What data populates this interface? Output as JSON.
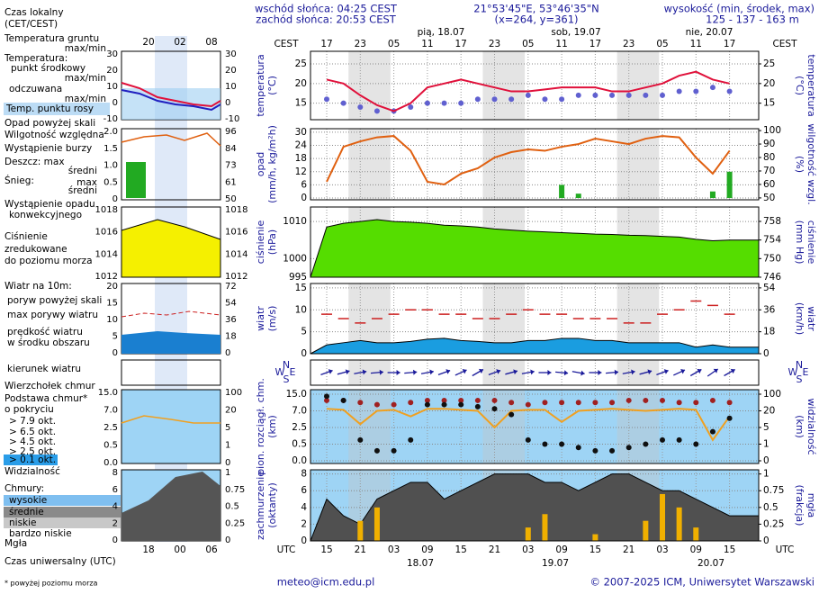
{
  "header": {
    "sunrise": "wschód słońca: 04:25 CEST",
    "sunset": "zachód słońca: 20:53 CEST",
    "coords": "21°53'45\"E, 53°46'35\"N",
    "grid": "(x=264,  y=361)",
    "elev_title": "wysokość (min, środek, max)",
    "elev": "125 - 137 - 163 m"
  },
  "time": {
    "cest_title": "CEST",
    "utc_title": "UTC",
    "cest": [
      "17",
      null,
      "23",
      null,
      "05",
      null,
      "11",
      null,
      "17",
      null,
      "23",
      null,
      "05",
      null,
      "11",
      null,
      "17",
      null,
      "23",
      null,
      "05",
      null,
      "11",
      null,
      "17"
    ],
    "utc": [
      "15",
      null,
      "21",
      null,
      "03",
      null,
      "09",
      null,
      "15",
      null,
      "21",
      null,
      "03",
      null,
      "09",
      null,
      "15",
      null,
      "21",
      null,
      "03",
      null,
      "09",
      null,
      "15"
    ],
    "days_top": [
      "pią, 18.07",
      "sob, 19.07",
      "nie, 20.07"
    ],
    "days_bottom": [
      "18.07",
      "19.07",
      "20.07"
    ]
  },
  "panels": [
    {
      "ylabel": [
        "temperatura",
        "(°C)"
      ],
      "y2label": [
        "(°C)",
        "temperatura"
      ],
      "ylim": [
        10.8,
        28.2
      ],
      "yticks": [
        25,
        20,
        15
      ],
      "y2lim": [
        10.8,
        28.2
      ],
      "y2ticks": [
        25,
        20,
        15
      ],
      "series": [
        {
          "kind": "dots",
          "color": "#6060d0",
          "values": [
            16,
            15,
            14,
            13,
            13,
            14,
            15,
            15,
            15,
            16,
            16,
            16,
            17,
            16,
            16,
            17,
            17,
            17,
            17,
            17,
            17,
            18,
            18,
            19,
            18
          ]
        },
        {
          "kind": "line",
          "color": "#e0103a",
          "values": [
            21,
            20,
            17,
            14.5,
            13,
            15,
            19,
            20,
            21,
            20,
            19,
            18,
            18,
            18.5,
            19,
            19,
            19,
            18,
            18,
            19,
            20,
            22,
            23,
            21,
            20
          ]
        }
      ]
    },
    {
      "ylabel": [
        "opad",
        "(mm/h, kg/m²h)"
      ],
      "y2label": [
        "(%)",
        "wilgotność wzgl."
      ],
      "ylim": [
        -0.8,
        31.6
      ],
      "yticks": [
        30,
        24,
        18,
        12,
        6,
        0
      ],
      "y2lim": [
        48.6,
        101.4
      ],
      "y2ticks": [
        100,
        90,
        80,
        70,
        60,
        50
      ],
      "series": [
        {
          "kind": "bars",
          "color": "#22aa22",
          "values": [
            0,
            0,
            0,
            0,
            0,
            0,
            0,
            0,
            0,
            0,
            0,
            0,
            0,
            0,
            6,
            2,
            0,
            0,
            0,
            0,
            0,
            0,
            0,
            3,
            12
          ]
        },
        {
          "kind": "line",
          "color": "#e06010",
          "axis": "y2",
          "values": [
            62,
            88,
            92,
            95,
            96,
            85,
            62,
            60,
            68,
            72,
            80,
            84,
            86,
            85,
            88,
            90,
            94,
            92,
            90,
            94,
            96,
            95,
            80,
            68,
            85
          ]
        }
      ]
    },
    {
      "ylabel": [
        "ciśnienie",
        "(hPa)"
      ],
      "y2label": [
        "(mm Hg)",
        "ciśnienie"
      ],
      "ylim": [
        995,
        1013.9
      ],
      "yticks": [
        1010,
        1000,
        995
      ],
      "y2lim": [
        746,
        761.1
      ],
      "y2ticks": [
        758,
        754,
        750,
        746
      ],
      "series": [
        {
          "kind": "area",
          "color": "#55dd00",
          "values": [
            1008.5,
            1009.5,
            1010,
            1010.5,
            1010,
            1009.8,
            1009.5,
            1009,
            1008.8,
            1008.5,
            1008,
            1007.7,
            1007.4,
            1007.2,
            1007,
            1006.8,
            1006.6,
            1006.5,
            1006.3,
            1006.2,
            1006,
            1005.8,
            1005.2,
            1004.8,
            1005
          ]
        }
      ]
    },
    {
      "ylabel": [
        "wiatr",
        "(m/s)"
      ],
      "y2label": [
        "(km/h)",
        "wiatr"
      ],
      "ylim": [
        0,
        16
      ],
      "yticks": [
        15,
        10,
        5,
        0
      ],
      "y2lim": [
        0,
        57.6
      ],
      "y2ticks": [
        54,
        36,
        18,
        0
      ],
      "series": [
        {
          "kind": "area",
          "color": "#1a9de0",
          "values": [
            2,
            2.5,
            3,
            2.5,
            2.5,
            2.8,
            3.3,
            3.5,
            3,
            2.8,
            2.5,
            2.5,
            3,
            3,
            3.5,
            3.5,
            3,
            3,
            2.5,
            2.5,
            2.5,
            2.5,
            1.5,
            2,
            1.5
          ]
        },
        {
          "kind": "dash",
          "color": "#cc2020",
          "values": [
            9,
            8,
            7,
            8,
            9,
            10,
            10,
            9,
            9,
            8,
            8,
            9,
            10,
            9,
            9,
            8,
            8,
            8,
            7,
            7,
            9,
            10,
            12,
            11,
            9
          ]
        }
      ]
    },
    {
      "compass": [
        "N",
        "W",
        "E",
        "S"
      ],
      "series": [
        {
          "kind": "arrows",
          "color": "#1a1a9a",
          "values": [
            250,
            255,
            260,
            265,
            270,
            265,
            260,
            250,
            245,
            240,
            250,
            255,
            260,
            270,
            275,
            280,
            270,
            265,
            260,
            255,
            250,
            245,
            240,
            235,
            240
          ]
        }
      ]
    },
    {
      "ylabel": [
        "pion. rozciągł. chm.",
        "(km)"
      ],
      "y2label": [
        "(km)",
        "widzialność"
      ],
      "scale": "ticks",
      "background": "#9ed4f5",
      "yticks": [
        {
          "value": 15,
          "label": "15.0"
        },
        {
          "value": 7,
          "label": "7.0"
        },
        2.5,
        0.5,
        {
          "value": 0,
          "label": "0.0"
        }
      ],
      "y2ticks": [
        100,
        20,
        5,
        1,
        0
      ],
      "series": [
        {
          "kind": "line",
          "color": "#f0a020",
          "axis": "y2",
          "values": [
            30,
            25,
            8,
            20,
            25,
            15,
            30,
            30,
            25,
            20,
            5,
            20,
            25,
            25,
            10,
            20,
            25,
            30,
            25,
            20,
            25,
            30,
            25,
            2,
            15
          ]
        },
        {
          "kind": "dots",
          "color": "#a02020",
          "values": [
            12,
            12,
            11,
            10,
            10,
            11,
            12,
            12,
            12,
            12,
            12,
            11,
            10,
            11,
            11,
            11,
            11,
            11,
            12,
            12,
            12,
            11,
            11,
            12,
            11
          ]
        },
        {
          "kind": "dots",
          "color": "#101010",
          "values": [
            14,
            12,
            1,
            0.3,
            0.3,
            1,
            10,
            10,
            10,
            9,
            8,
            6,
            1,
            0.5,
            0.5,
            0.4,
            0.3,
            0.3,
            0.4,
            0.5,
            1,
            1,
            0.5,
            2,
            5
          ]
        }
      ]
    },
    {
      "ylabel": [
        "zachmurzenie",
        "(oktanty)"
      ],
      "y2label": [
        "(frakcja)",
        "mgła"
      ],
      "background": "#9ed4f5",
      "ylim": [
        0,
        8.5
      ],
      "yticks": [
        8,
        6,
        4,
        2,
        0
      ],
      "y2lim": [
        0,
        1.0625
      ],
      "y2ticks": [
        1,
        0.75,
        0.5,
        0.25,
        0
      ],
      "series": [
        {
          "kind": "area",
          "color": "#505050",
          "values": [
            5,
            3,
            2,
            5,
            6,
            7,
            7,
            5,
            6,
            7,
            8,
            8,
            8,
            7,
            7,
            6,
            7,
            8,
            8,
            7,
            6,
            6,
            5,
            4,
            3
          ]
        },
        {
          "kind": "bars",
          "color": "#f0b000",
          "axis": "y2",
          "values": [
            0,
            0,
            0.3,
            0.5,
            0,
            0,
            0,
            0,
            0,
            0,
            0,
            0,
            0.2,
            0.4,
            0,
            0,
            0.1,
            0,
            0,
            0.3,
            0.7,
            0.5,
            0.2,
            0,
            0
          ]
        }
      ]
    }
  ],
  "legend": [
    {
      "text": "Czas lokalny",
      "color": "#000"
    },
    {
      "text": "(CET/CEST)",
      "color": "#000"
    },
    {
      "text": "Temperatura gruntu",
      "color": "#cc2020"
    },
    {
      "text": "max/min",
      "color": "#cc2020"
    },
    {
      "text": "Temperatura:",
      "color": "#000"
    },
    {
      "text": "punkt środkowy",
      "color": "#cc2020"
    },
    {
      "text": "max/min",
      "color": "#f0a0a0"
    },
    {
      "text": "odczuwana",
      "color": "#2020c0"
    },
    {
      "text": "max/min",
      "color": "#a0a0f0"
    },
    {
      "text": "Temp. punktu rosy",
      "color": "#4040c0"
    },
    {
      "text": "Opad powyżej skali",
      "color": "#cc2020"
    },
    {
      "text": "Wilgotność względna",
      "color": "#cc3000"
    },
    {
      "text": "Wystąpienie burzy",
      "color": "#000"
    },
    {
      "text": "Deszcz: max",
      "color": "#20a020"
    },
    {
      "text": "średni",
      "color": "#20a020"
    },
    {
      "text": "Śnieg:",
      "color": "#2020c0"
    },
    {
      "text": "max",
      "color": "#2020c0"
    },
    {
      "text": "średni",
      "color": "#2020c0"
    },
    {
      "text": "Wystąpienie opadu",
      "color": "#cc2020"
    },
    {
      "text": "konwekcyjnego",
      "color": "#cc2020"
    },
    {
      "text": "Ciśnienie",
      "color": "#000"
    },
    {
      "text": "zredukowane",
      "color": "#000"
    },
    {
      "text": "do poziomu morza",
      "color": "#000"
    },
    {
      "text": "Wiatr na 10m:",
      "color": "#000"
    },
    {
      "text": "poryw powyżej skali",
      "color": "#cc2020"
    },
    {
      "text": "max porywy wiatru",
      "color": "#cc2020"
    },
    {
      "text": "prędkość wiatru",
      "color": "#2020c0"
    },
    {
      "text": "w środku obszaru",
      "color": "#2020c0"
    },
    {
      "text": "kierunek wiatru",
      "color": "#2020c0"
    },
    {
      "text": "Wierzchołek chmur",
      "color": "#cc2020"
    },
    {
      "text": "Podstawa chmur*",
      "color": "#000"
    },
    {
      "text": "o pokryciu",
      "color": "#000"
    },
    {
      "text": "> 7.9 okt.",
      "color": "#000"
    },
    {
      "text": "> 6.5 okt.",
      "color": "#777"
    },
    {
      "text": "> 4.5 okt.",
      "color": "#aaa"
    },
    {
      "text": "> 2.5 okt.",
      "color": "#ddd"
    },
    {
      "text": "> 0.1 okt.",
      "color": "#fff"
    },
    {
      "text": "Widzialność",
      "color": "#e08000"
    },
    {
      "text": "Chmury:",
      "color": "#000"
    },
    {
      "text": "wysokie",
      "color": "#fff"
    },
    {
      "text": "średnie",
      "color": "#ccc"
    },
    {
      "text": "niskie",
      "color": "#000"
    },
    {
      "text": "bardzo niskie",
      "color": "#000"
    },
    {
      "text": "Mgła",
      "color": "#e08000"
    },
    {
      "text": "Czas uniwersalny (UTC)",
      "color": "#000"
    }
  ],
  "mini": {
    "top": [
      "20",
      "02",
      "08"
    ],
    "bottom": [
      "18",
      "00",
      "06"
    ],
    "ticks": [
      {
        "left": [
          "30",
          "20",
          "10",
          "0",
          "-10"
        ],
        "right": [
          "30",
          "20",
          "10",
          "0",
          "-10"
        ]
      },
      {
        "left": [
          "2.0",
          "1.5",
          "1.0",
          "0.5",
          "0"
        ],
        "right": [
          "96",
          "84",
          "73",
          "61",
          "50"
        ]
      },
      {
        "left": [
          "1018",
          "1016",
          "1014",
          "1012"
        ],
        "right": [
          "1018",
          "1016",
          "1014",
          "1012"
        ]
      },
      {
        "left": [
          "20",
          "15",
          "10",
          "5",
          "0"
        ],
        "right": [
          "72",
          "54",
          "36",
          "18",
          "0"
        ]
      },
      {
        "left": [],
        "right": []
      },
      {
        "left": [
          "15.0",
          "7.0",
          "2.5",
          "0.5",
          "0.0"
        ],
        "right": [
          "100",
          "20",
          "5",
          "1",
          "0"
        ]
      },
      {
        "left": [
          "8",
          "6",
          "4",
          "2",
          "0"
        ],
        "right": [
          "1",
          "0.75",
          "0.5",
          "0.25",
          "0"
        ]
      }
    ]
  },
  "footer": {
    "note": "* powyżej poziomu morza",
    "email": "meteo@icm.edu.pl",
    "copyright": "© 2007-2025 ICM, Uniwersytet Warszawski"
  }
}
